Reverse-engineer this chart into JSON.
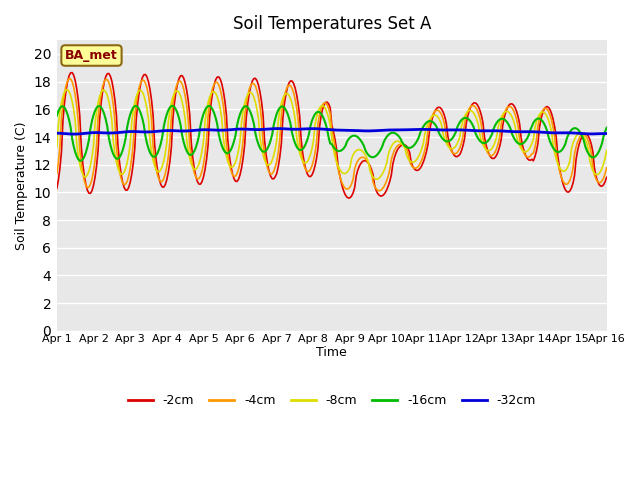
{
  "title": "Soil Temperatures Set A",
  "xlabel": "Time",
  "ylabel": "Soil Temperature (C)",
  "ylim": [
    0,
    21
  ],
  "yticks": [
    0,
    2,
    4,
    6,
    8,
    10,
    12,
    14,
    16,
    18,
    20
  ],
  "x_labels": [
    "Apr 1",
    "Apr 2",
    "Apr 3",
    "Apr 4",
    "Apr 5",
    "Apr 6",
    "Apr 7",
    "Apr 8",
    "Apr 9",
    "Apr 10",
    "Apr 11",
    "Apr 12",
    "Apr 13",
    "Apr 14",
    "Apr 15",
    "Apr 16"
  ],
  "line_colors": {
    "-2cm": "#dd0000",
    "-4cm": "#ff9900",
    "-8cm": "#dddd00",
    "-16cm": "#00bb00",
    "-32cm": "#0000dd"
  },
  "line_widths": {
    "-2cm": 1.2,
    "-4cm": 1.2,
    "-8cm": 1.2,
    "-16cm": 1.5,
    "-32cm": 2.0
  },
  "annotation_text": "BA_met",
  "bg_color": "#e8e8e8",
  "fig_bg_color": "#ffffff"
}
